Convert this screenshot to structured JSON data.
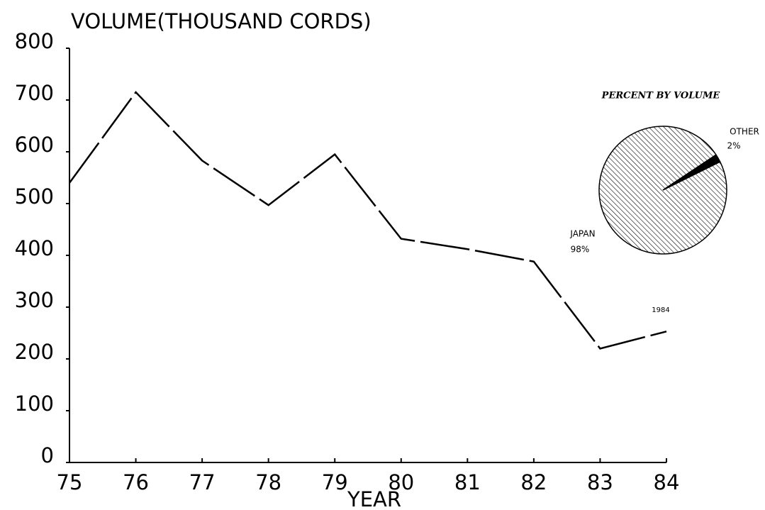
{
  "chart_data": [
    {
      "type": "line",
      "title": "VOLUME(THOUSAND CORDS)",
      "x_label": "YEAR",
      "categories": [
        "75",
        "76",
        "77",
        "78",
        "79",
        "80",
        "81",
        "82",
        "83",
        "84"
      ],
      "values": [
        540,
        715,
        583,
        497,
        595,
        432,
        412,
        388,
        220,
        253
      ],
      "color": "#000000",
      "ylim": [
        0,
        800
      ],
      "yticks": [
        0,
        100,
        200,
        300,
        400,
        500,
        600,
        700,
        800
      ],
      "annotation": "1984"
    },
    {
      "type": "pie",
      "title": "PERCENT BY VOLUME",
      "categories": [
        "JAPAN",
        "OTHER"
      ],
      "values": [
        98,
        2
      ],
      "value_labels": [
        "98%",
        "2%"
      ],
      "colors": [
        "#ffffff",
        "#000000"
      ]
    }
  ]
}
